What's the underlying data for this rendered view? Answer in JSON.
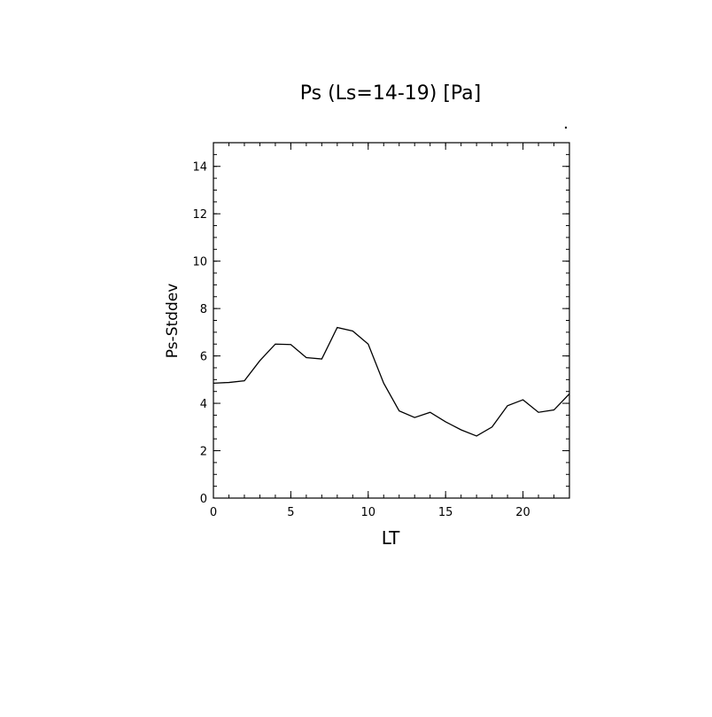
{
  "chart_data": {
    "type": "line",
    "title": "Ps (Ls=14-19) [Pa]",
    "xlabel": "LT",
    "ylabel": "Ps-Stddev",
    "xlim": [
      0,
      23
    ],
    "ylim": [
      0,
      15
    ],
    "xticks": [
      0,
      5,
      10,
      15,
      20
    ],
    "xtick_labels": [
      "0",
      "5",
      "10",
      "15",
      "20"
    ],
    "yticks": [
      0,
      2,
      4,
      6,
      8,
      10,
      12,
      14
    ],
    "ytick_labels": [
      "0",
      "2",
      "4",
      "6",
      "8",
      "10",
      "12",
      "14"
    ],
    "grid": false,
    "series": [
      {
        "x": [
          0,
          1,
          2,
          3,
          4,
          5,
          6,
          7,
          8,
          9,
          10,
          11,
          12,
          13,
          14,
          15,
          16,
          17,
          18,
          19,
          20,
          21,
          22,
          23
        ],
        "values": [
          4.85,
          4.88,
          4.95,
          5.8,
          6.5,
          6.48,
          5.93,
          5.87,
          7.2,
          7.05,
          6.5,
          4.85,
          3.68,
          3.4,
          3.62,
          3.22,
          2.88,
          2.62,
          3.0,
          3.9,
          4.15,
          3.62,
          3.72,
          4.4
        ]
      }
    ],
    "line_color": "#000000"
  }
}
